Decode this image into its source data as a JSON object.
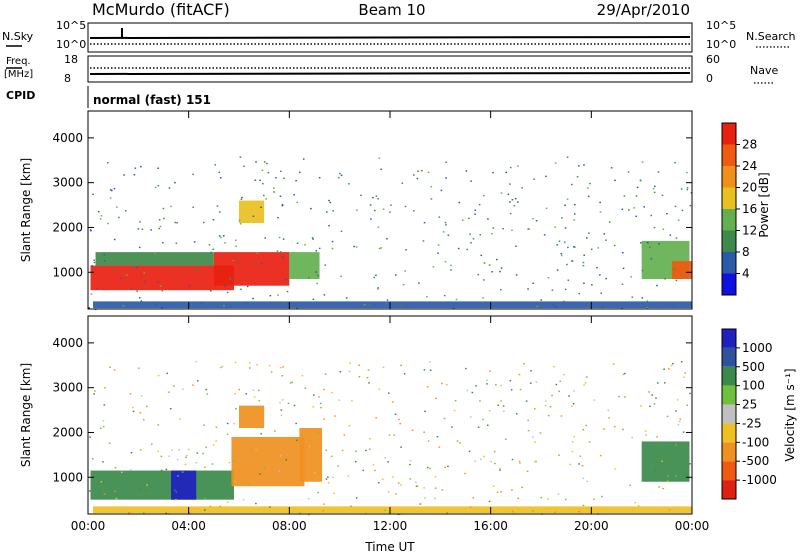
{
  "header": {
    "station": "McMurdo (fitACF)",
    "beam": "Beam 10",
    "date": "29/Apr/2010"
  },
  "top_panels": {
    "nsky_label": "N.Sky",
    "nsearch_label": "N.Search",
    "nsky_ticks": [
      "10^5",
      "10^0"
    ],
    "nsearch_ticks": [
      "10^5",
      "10^0"
    ],
    "freq_label": "Freq.",
    "freq_unit": "[MHz]",
    "freq_ticks": [
      "18",
      "8"
    ],
    "nave_label": "Nave",
    "nave_ticks": [
      "60",
      "0"
    ],
    "cpid_label": "CPID",
    "cpid_value": "normal (fast) 151"
  },
  "colors": {
    "power": [
      "#1010e0",
      "#2a5aa8",
      "#3e8a4a",
      "#64b050",
      "#e8c020",
      "#f0901a",
      "#f05a10",
      "#e82010"
    ],
    "velocity": [
      "#2020c0",
      "#3050a0",
      "#3a8a4a",
      "#70c040",
      "#c0c0c0",
      "#f0c020",
      "#f09020",
      "#f05a10",
      "#e02010"
    ]
  },
  "chart_data": [
    {
      "type": "heatmap",
      "panel": "power",
      "ylabel": "Slant Range [km]",
      "xlabel": "",
      "yticks": [
        "1000",
        "2000",
        "3000",
        "4000"
      ],
      "xticks": [
        "00:00",
        "04:00",
        "08:00",
        "12:00",
        "16:00",
        "20:00",
        "00:00"
      ],
      "ylim": [
        180,
        4600
      ],
      "xlim_hours": [
        0,
        24
      ],
      "colorbar": {
        "label": "Power [dB]",
        "ticks": [
          "4",
          "8",
          "12",
          "16",
          "20",
          "24",
          "28"
        ],
        "range": [
          0,
          32
        ]
      },
      "regions": [
        {
          "t0": 0.1,
          "t1": 5.8,
          "r0": 600,
          "r1": 1150,
          "value": 28
        },
        {
          "t0": 5.0,
          "t1": 8.0,
          "r0": 700,
          "r1": 1450,
          "value": 28
        },
        {
          "t0": 8.0,
          "t1": 9.2,
          "r0": 850,
          "r1": 1450,
          "value": 14
        },
        {
          "t0": 0.3,
          "t1": 5.0,
          "r0": 1150,
          "r1": 1450,
          "value": 10
        },
        {
          "t0": 22.0,
          "t1": 23.9,
          "r0": 850,
          "r1": 1700,
          "value": 12
        },
        {
          "t0": 23.2,
          "t1": 24.0,
          "r0": 850,
          "r1": 1250,
          "value": 24
        },
        {
          "t0": 6.0,
          "t1": 7.0,
          "r0": 2100,
          "r1": 2600,
          "value": 16
        },
        {
          "t0": 0.2,
          "t1": 24.0,
          "r0": 200,
          "r1": 350,
          "value": 6
        }
      ]
    },
    {
      "type": "heatmap",
      "panel": "velocity",
      "ylabel": "Slant Range [km]",
      "xlabel": "Time UT",
      "yticks": [
        "1000",
        "2000",
        "3000",
        "4000"
      ],
      "xticks": [
        "00:00",
        "04:00",
        "08:00",
        "12:00",
        "16:00",
        "20:00",
        "00:00"
      ],
      "ylim": [
        180,
        4600
      ],
      "xlim_hours": [
        0,
        24
      ],
      "colorbar": {
        "label": "Velocity [m s⁻¹]",
        "ticks": [
          "1000",
          "500",
          "100",
          "25",
          "-25",
          "-100",
          "-500",
          "-1000"
        ],
        "range": [
          -1000,
          1000
        ]
      },
      "regions": [
        {
          "t0": 0.1,
          "t1": 5.8,
          "r0": 500,
          "r1": 1150,
          "value": 300
        },
        {
          "t0": 3.3,
          "t1": 4.3,
          "r0": 500,
          "r1": 1150,
          "value": 1000
        },
        {
          "t0": 5.7,
          "t1": 8.6,
          "r0": 800,
          "r1": 1900,
          "value": -300
        },
        {
          "t0": 8.4,
          "t1": 9.3,
          "r0": 900,
          "r1": 2100,
          "value": -150
        },
        {
          "t0": 22.0,
          "t1": 23.9,
          "r0": 900,
          "r1": 1800,
          "value": 300
        },
        {
          "t0": 6.0,
          "t1": 7.0,
          "r0": 2100,
          "r1": 2600,
          "value": -200
        },
        {
          "t0": 0.2,
          "t1": 24.0,
          "r0": 200,
          "r1": 350,
          "value": -60
        }
      ]
    }
  ]
}
